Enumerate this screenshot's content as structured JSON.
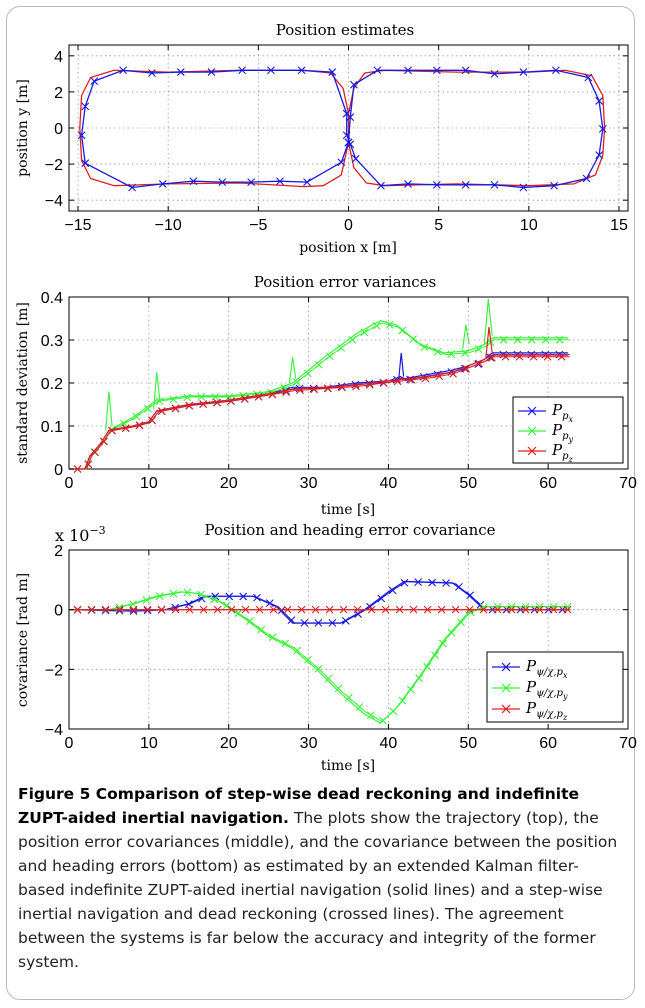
{
  "caption": {
    "bold": "Figure 5 Comparison of step-wise dead reckoning and indefinite ZUPT-aided inertial navigation.",
    "text": "The plots show the trajectory (top), the position error covariances (middle), and the covariance between the position and heading errors (bottom) as estimated by an extended Kalman filter-based indefinite ZUPT-aided inertial navigation (solid lines) and a step-wise inertial navigation and dead reckoning (crossed lines). The agreement between the systems is far below the accuracy and integrity of the former system."
  },
  "colors": {
    "blue": "#1a1adf",
    "green": "#3cf23c",
    "red": "#dc2020",
    "axis": "#000000",
    "grid": "#9a9a9a"
  },
  "chart_data": [
    {
      "type": "line",
      "title": "Position estimates",
      "xlabel": "position x [m]",
      "ylabel": "position y [m]",
      "xlim": [
        -15.5,
        15.5
      ],
      "ylim": [
        -4.6,
        4.6
      ],
      "xticks": [
        -15,
        -10,
        -5,
        0,
        5,
        10,
        15
      ],
      "yticks": [
        -4,
        -2,
        0,
        2,
        4
      ],
      "grid": true,
      "series": [
        {
          "style": "solid",
          "color": "red",
          "points": [
            [
              0,
              -0.8
            ],
            [
              -0.4,
              -2.6
            ],
            [
              -1.4,
              -3.2
            ],
            [
              -2.5,
              -3.25
            ],
            [
              -6,
              -3.05
            ],
            [
              -10,
              -3.1
            ],
            [
              -13,
              -3.2
            ],
            [
              -14.3,
              -2.8
            ],
            [
              -14.8,
              -1.8
            ],
            [
              -14.9,
              0
            ],
            [
              -14.8,
              1.8
            ],
            [
              -14.3,
              2.8
            ],
            [
              -13,
              3.2
            ],
            [
              -10,
              3.1
            ],
            [
              -6,
              3.2
            ],
            [
              -2.5,
              3.2
            ],
            [
              -1,
              3.05
            ],
            [
              -0.3,
              2.2
            ],
            [
              0,
              0.8
            ],
            [
              0,
              0
            ],
            [
              0,
              -0.8
            ],
            [
              0.3,
              -2.2
            ],
            [
              1,
              -3.05
            ],
            [
              2,
              -3.2
            ],
            [
              6,
              -3.1
            ],
            [
              10,
              -3.2
            ],
            [
              12.5,
              -3.1
            ],
            [
              13.7,
              -2.6
            ],
            [
              14.1,
              -1.5
            ],
            [
              14.2,
              0
            ],
            [
              14.1,
              1.8
            ],
            [
              13.5,
              2.9
            ],
            [
              12,
              3.2
            ],
            [
              10,
              3.1
            ],
            [
              6,
              3.1
            ],
            [
              2,
              3.2
            ],
            [
              0.9,
              3.05
            ],
            [
              0.3,
              2.2
            ],
            [
              0,
              0.8
            ]
          ]
        },
        {
          "style": "crossed",
          "color": "blue",
          "points": [
            [
              0,
              -0.8
            ],
            [
              -0.4,
              -1.9
            ],
            [
              -2.3,
              -3.0
            ],
            [
              -3.8,
              -2.95
            ],
            [
              -5.4,
              -3.0
            ],
            [
              -7,
              -3.0
            ],
            [
              -8.6,
              -2.95
            ],
            [
              -10.3,
              -3.1
            ],
            [
              -12,
              -3.3
            ],
            [
              -14.6,
              -1.95
            ],
            [
              -14.8,
              -0.4
            ],
            [
              -14.6,
              1.2
            ],
            [
              -14.1,
              2.6
            ],
            [
              -12.5,
              3.2
            ],
            [
              -10.9,
              3.05
            ],
            [
              -9.3,
              3.1
            ],
            [
              -7.6,
              3.1
            ],
            [
              -5.9,
              3.2
            ],
            [
              -4.3,
              3.2
            ],
            [
              -2.6,
              3.2
            ],
            [
              -0.9,
              3.1
            ],
            [
              -0.1,
              0.8
            ],
            [
              -0.1,
              -0.4
            ],
            [
              0.1,
              -0.9
            ],
            [
              0.4,
              -1.7
            ],
            [
              1.8,
              -3.2
            ],
            [
              3.3,
              -3.1
            ],
            [
              4.9,
              -3.15
            ],
            [
              6.5,
              -3.15
            ],
            [
              8.1,
              -3.15
            ],
            [
              9.7,
              -3.3
            ],
            [
              11.4,
              -3.2
            ],
            [
              13.2,
              -2.8
            ],
            [
              13.9,
              -1.5
            ],
            [
              14.1,
              -0.05
            ],
            [
              13.9,
              1.5
            ],
            [
              13.3,
              2.8
            ],
            [
              11.5,
              3.2
            ],
            [
              9.7,
              3.1
            ],
            [
              8.1,
              3.0
            ],
            [
              6.5,
              3.2
            ],
            [
              4.9,
              3.2
            ],
            [
              3.3,
              3.2
            ],
            [
              1.6,
              3.2
            ],
            [
              0.3,
              2.4
            ],
            [
              0.1,
              0.6
            ],
            [
              0,
              -0.8
            ]
          ]
        }
      ]
    },
    {
      "type": "line",
      "title": "Position error variances",
      "xlabel": "time [s]",
      "ylabel": "standard deviation [m]",
      "xlim": [
        0,
        70
      ],
      "ylim": [
        0,
        0.4
      ],
      "xticks": [
        0,
        10,
        20,
        30,
        40,
        50,
        60,
        70
      ],
      "yticks": [
        0,
        0.1,
        0.2,
        0.3,
        0.4
      ],
      "grid": true,
      "legend_position": "lower-right",
      "legend": [
        "P_px",
        "P_py",
        "P_pz"
      ],
      "series": [
        {
          "name": "P_px",
          "color": "blue",
          "style": "solid+crossed",
          "points": [
            [
              0,
              0
            ],
            [
              2,
              0
            ],
            [
              2.6,
              0.03
            ],
            [
              4,
              0.06
            ],
            [
              5,
              0.09
            ],
            [
              8,
              0.1
            ],
            [
              10,
              0.11
            ],
            [
              11,
              0.135
            ],
            [
              15,
              0.15
            ],
            [
              20,
              0.16
            ],
            [
              25,
              0.175
            ],
            [
              28,
              0.19
            ],
            [
              32,
              0.19
            ],
            [
              36,
              0.2
            ],
            [
              40,
              0.205
            ],
            [
              41.5,
              0.215
            ],
            [
              42,
              0.21
            ],
            [
              45,
              0.22
            ],
            [
              48,
              0.23
            ],
            [
              50,
              0.24
            ],
            [
              52,
              0.255
            ],
            [
              53,
              0.27
            ],
            [
              62.5,
              0.27
            ]
          ]
        },
        {
          "name": "P_py",
          "color": "green",
          "style": "solid+crossed",
          "points": [
            [
              0,
              0
            ],
            [
              2,
              0
            ],
            [
              2.6,
              0.03
            ],
            [
              4,
              0.06
            ],
            [
              5,
              0.09
            ],
            [
              8,
              0.12
            ],
            [
              11,
              0.16
            ],
            [
              15,
              0.17
            ],
            [
              20,
              0.17
            ],
            [
              25,
              0.18
            ],
            [
              28,
              0.2
            ],
            [
              32,
              0.26
            ],
            [
              36,
              0.315
            ],
            [
              39,
              0.345
            ],
            [
              41,
              0.335
            ],
            [
              44,
              0.29
            ],
            [
              47,
              0.27
            ],
            [
              50,
              0.275
            ],
            [
              52,
              0.29
            ],
            [
              53,
              0.305
            ],
            [
              62.5,
              0.305
            ]
          ]
        },
        {
          "name": "P_pz",
          "color": "red",
          "style": "solid+crossed",
          "points": [
            [
              0,
              0
            ],
            [
              2,
              0
            ],
            [
              2.6,
              0.03
            ],
            [
              4,
              0.06
            ],
            [
              5,
              0.09
            ],
            [
              8,
              0.1
            ],
            [
              10,
              0.11
            ],
            [
              11,
              0.135
            ],
            [
              15,
              0.15
            ],
            [
              20,
              0.16
            ],
            [
              25,
              0.175
            ],
            [
              28,
              0.185
            ],
            [
              32,
              0.19
            ],
            [
              36,
              0.195
            ],
            [
              40,
              0.205
            ],
            [
              45,
              0.215
            ],
            [
              48,
              0.225
            ],
            [
              50,
              0.24
            ],
            [
              52,
              0.255
            ],
            [
              53,
              0.265
            ],
            [
              62.5,
              0.265
            ]
          ]
        }
      ],
      "spikes": [
        {
          "color": "green",
          "points": [
            [
              4.6,
              0.09
            ],
            [
              5.0,
              0.18
            ],
            [
              5.4,
              0.1
            ]
          ]
        },
        {
          "color": "green",
          "points": [
            [
              10.6,
              0.14
            ],
            [
              11.0,
              0.225
            ],
            [
              11.4,
              0.155
            ]
          ]
        },
        {
          "color": "green",
          "points": [
            [
              27.6,
              0.2
            ],
            [
              28.0,
              0.26
            ],
            [
              28.4,
              0.21
            ]
          ]
        },
        {
          "color": "blue",
          "points": [
            [
              41.3,
              0.21
            ],
            [
              41.6,
              0.27
            ],
            [
              41.9,
              0.215
            ]
          ]
        },
        {
          "color": "green",
          "points": [
            [
              49.3,
              0.28
            ],
            [
              49.7,
              0.335
            ],
            [
              50.1,
              0.29
            ]
          ]
        },
        {
          "color": "green",
          "points": [
            [
              52.0,
              0.29
            ],
            [
              52.5,
              0.395
            ],
            [
              53.0,
              0.31
            ]
          ]
        },
        {
          "color": "red",
          "points": [
            [
              52.2,
              0.26
            ],
            [
              52.6,
              0.33
            ],
            [
              53.0,
              0.27
            ]
          ]
        }
      ]
    },
    {
      "type": "line",
      "title": "Position and heading error covariance",
      "xlabel": "time [s]",
      "ylabel": "covariance [rad m]",
      "scale_label": "x 10^-3",
      "xlim": [
        0,
        70
      ],
      "ylim": [
        -4,
        2
      ],
      "xticks": [
        0,
        10,
        20,
        30,
        40,
        50,
        60,
        70
      ],
      "yticks": [
        -4,
        -2,
        0,
        2
      ],
      "grid": true,
      "legend_position": "lower-right",
      "legend": [
        "P_ψ/χ,px",
        "P_ψ/χ,py",
        "P_ψ/χ,pz"
      ],
      "series": [
        {
          "name": "P_ψ/χ,px",
          "color": "blue",
          "style": "solid+crossed",
          "points": [
            [
              0,
              0
            ],
            [
              8,
              -0.05
            ],
            [
              12,
              0
            ],
            [
              15,
              0.2
            ],
            [
              17,
              0.45
            ],
            [
              23,
              0.45
            ],
            [
              26,
              0.1
            ],
            [
              28,
              -0.45
            ],
            [
              34,
              -0.45
            ],
            [
              37,
              0
            ],
            [
              40,
              0.6
            ],
            [
              42,
              0.95
            ],
            [
              48,
              0.9
            ],
            [
              50,
              0.5
            ],
            [
              52,
              0
            ],
            [
              62.5,
              0
            ]
          ]
        },
        {
          "name": "P_ψ/χ,py",
          "color": "green",
          "style": "solid+crossed",
          "points": [
            [
              0,
              0
            ],
            [
              5,
              0
            ],
            [
              8,
              0.2
            ],
            [
              11,
              0.45
            ],
            [
              14,
              0.6
            ],
            [
              16,
              0.55
            ],
            [
              19,
              0.25
            ],
            [
              22,
              -0.3
            ],
            [
              25,
              -0.9
            ],
            [
              28,
              -1.3
            ],
            [
              31,
              -2.0
            ],
            [
              34,
              -2.8
            ],
            [
              37,
              -3.5
            ],
            [
              39,
              -3.8
            ],
            [
              41,
              -3.3
            ],
            [
              44,
              -2.2
            ],
            [
              47,
              -1.0
            ],
            [
              50,
              -0.1
            ],
            [
              52,
              0.1
            ],
            [
              62.5,
              0.1
            ]
          ]
        },
        {
          "name": "P_ψ/χ,pz",
          "color": "red",
          "style": "solid+crossed",
          "points": [
            [
              0,
              0
            ],
            [
              62.5,
              0
            ]
          ]
        }
      ]
    }
  ]
}
